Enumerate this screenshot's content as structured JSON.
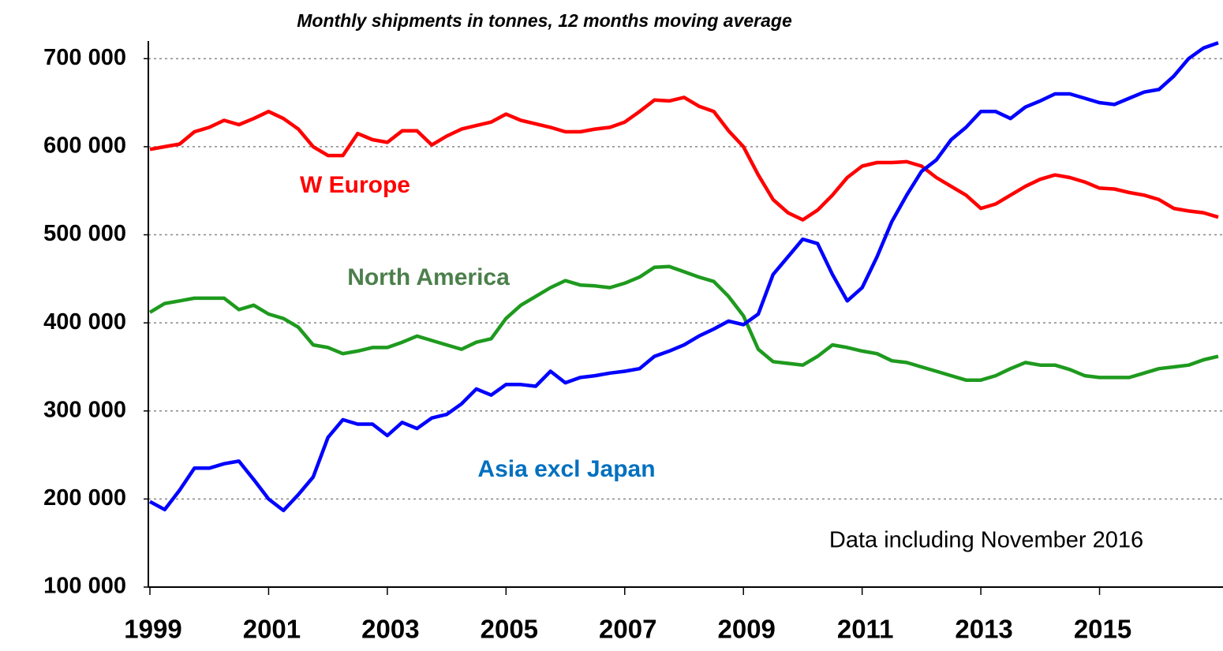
{
  "chart_data": {
    "type": "line",
    "title": "Monthly shipments in tonnes, 12 months moving average",
    "annotations": [
      {
        "text": "W Europe",
        "color": "#ff0000"
      },
      {
        "text": "North America",
        "color": "#4b7f4b"
      },
      {
        "text": "Asia excl Japan",
        "color": "#0070c0"
      },
      {
        "text": "Data including November 2016",
        "color": "#000000"
      }
    ],
    "x": [
      1999,
      1999.25,
      1999.5,
      1999.75,
      2000,
      2000.25,
      2000.5,
      2000.75,
      2001,
      2001.25,
      2001.5,
      2001.75,
      2002,
      2002.25,
      2002.5,
      2002.75,
      2003,
      2003.25,
      2003.5,
      2003.75,
      2004,
      2004.25,
      2004.5,
      2004.75,
      2005,
      2005.25,
      2005.5,
      2005.75,
      2006,
      2006.25,
      2006.5,
      2006.75,
      2007,
      2007.25,
      2007.5,
      2007.75,
      2008,
      2008.25,
      2008.5,
      2008.75,
      2009,
      2009.25,
      2009.5,
      2009.75,
      2010,
      2010.25,
      2010.5,
      2010.75,
      2011,
      2011.25,
      2011.5,
      2011.75,
      2012,
      2012.25,
      2012.5,
      2012.75,
      2013,
      2013.25,
      2013.5,
      2013.75,
      2014,
      2014.25,
      2014.5,
      2014.75,
      2015,
      2015.25,
      2015.5,
      2015.75,
      2016,
      2016.25,
      2016.5,
      2016.75,
      2017
    ],
    "series": [
      {
        "name": "W Europe",
        "color": "#ff0000",
        "values": [
          597000,
          600000,
          603000,
          617000,
          622000,
          630000,
          625000,
          632000,
          640000,
          632000,
          620000,
          600000,
          590000,
          590000,
          615000,
          608000,
          605000,
          618000,
          618000,
          602000,
          612000,
          620000,
          624000,
          628000,
          637000,
          630000,
          626000,
          622000,
          617000,
          617000,
          620000,
          622000,
          628000,
          640000,
          653000,
          652000,
          656000,
          646000,
          640000,
          618000,
          600000,
          568000,
          540000,
          525000,
          517000,
          528000,
          545000,
          565000,
          578000,
          582000,
          582000,
          583000,
          578000,
          565000,
          555000,
          545000,
          530000,
          535000,
          545000,
          555000,
          563000,
          568000,
          565000,
          560000,
          553000,
          552000,
          548000,
          545000,
          540000,
          530000,
          527000,
          525000,
          520000
        ]
      },
      {
        "name": "North America",
        "color": "#1e9a1e",
        "values": [
          412000,
          422000,
          425000,
          428000,
          428000,
          428000,
          415000,
          420000,
          410000,
          405000,
          395000,
          375000,
          372000,
          365000,
          368000,
          372000,
          372000,
          378000,
          385000,
          380000,
          375000,
          370000,
          378000,
          382000,
          405000,
          420000,
          430000,
          440000,
          448000,
          443000,
          442000,
          440000,
          445000,
          452000,
          463000,
          464000,
          458000,
          452000,
          447000,
          430000,
          408000,
          370000,
          356000,
          354000,
          352000,
          362000,
          375000,
          372000,
          368000,
          365000,
          357000,
          355000,
          350000,
          345000,
          340000,
          335000,
          335000,
          340000,
          348000,
          355000,
          352000,
          352000,
          347000,
          340000,
          338000,
          338000,
          338000,
          343000,
          348000,
          350000,
          352000,
          358000,
          362000
        ]
      },
      {
        "name": "Asia excl Japan",
        "color": "#0000ff",
        "values": [
          197000,
          188000,
          210000,
          235000,
          235000,
          240000,
          243000,
          222000,
          200000,
          187000,
          205000,
          225000,
          270000,
          290000,
          285000,
          285000,
          272000,
          287000,
          280000,
          292000,
          296000,
          308000,
          325000,
          318000,
          330000,
          330000,
          328000,
          345000,
          332000,
          338000,
          340000,
          343000,
          345000,
          348000,
          362000,
          368000,
          375000,
          385000,
          393000,
          402000,
          398000,
          410000,
          455000,
          475000,
          495000,
          490000,
          455000,
          425000,
          440000,
          475000,
          515000,
          545000,
          572000,
          585000,
          608000,
          622000,
          640000,
          640000,
          632000,
          645000,
          652000,
          660000,
          660000,
          655000,
          650000,
          648000,
          655000,
          662000,
          665000,
          680000,
          700000,
          712000,
          718000
        ]
      }
    ],
    "xlim": [
      1999,
      2017.08
    ],
    "xticks": [
      1999,
      2001,
      2003,
      2005,
      2007,
      2009,
      2011,
      2013,
      2015
    ],
    "ylim": [
      100000,
      720000
    ],
    "yticks": [
      {
        "value": 100000,
        "label": "100 000"
      },
      {
        "value": 200000,
        "label": "200 000"
      },
      {
        "value": 300000,
        "label": "300 000"
      },
      {
        "value": 400000,
        "label": "400 000"
      },
      {
        "value": 500000,
        "label": "500 000"
      },
      {
        "value": 600000,
        "label": "600 000"
      },
      {
        "value": 700000,
        "label": "700 000"
      }
    ],
    "grid": true
  }
}
